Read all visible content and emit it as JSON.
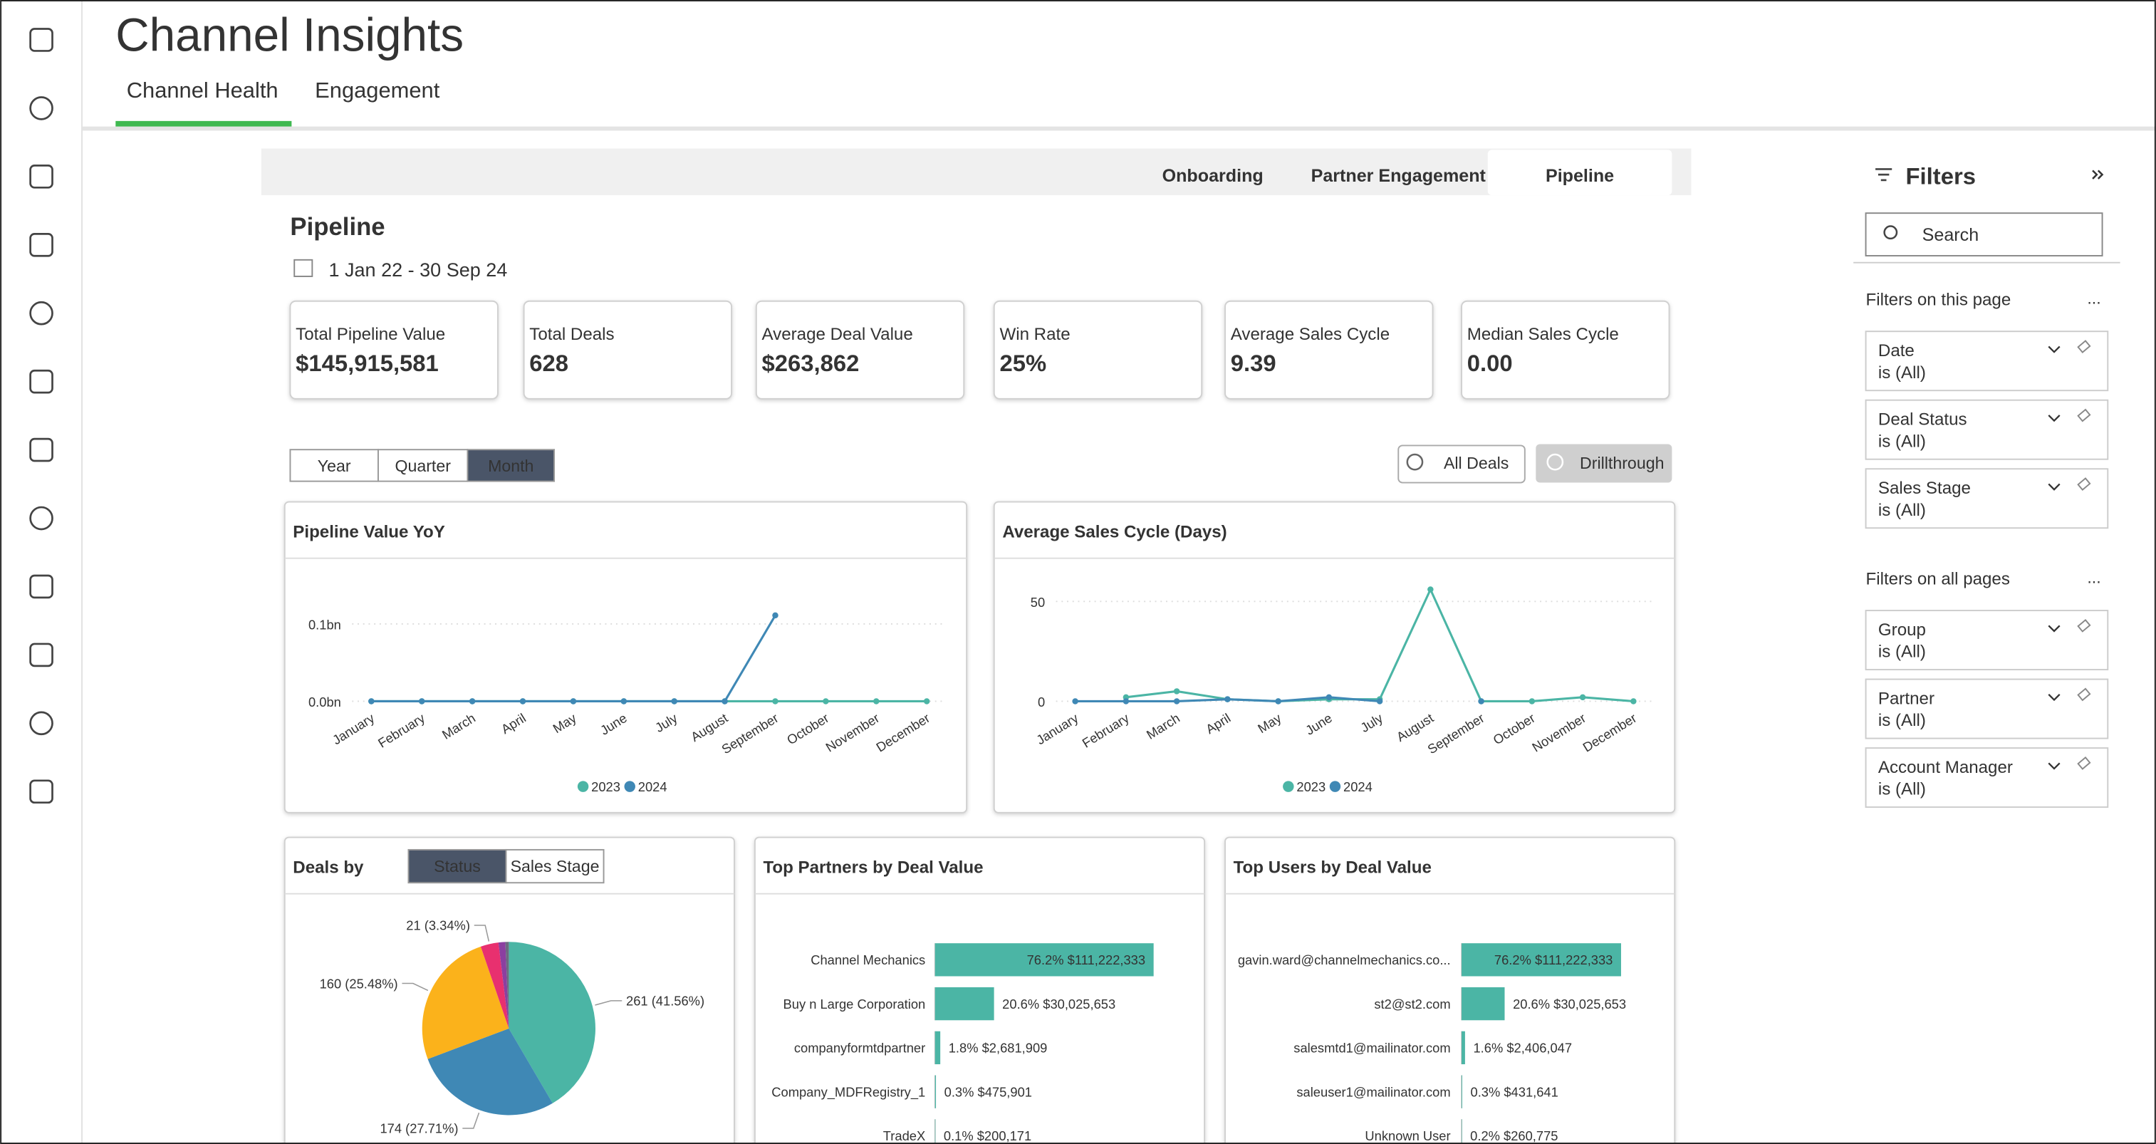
{
  "nav": {
    "title": "Channel Insights",
    "tabs": [
      "Channel Health",
      "Engagement"
    ]
  },
  "report_tabs": [
    "Onboarding",
    "Partner Engagement",
    "Pipeline"
  ],
  "page": {
    "title": "Pipeline",
    "date_range": "1 Jan 22 - 30 Sep 24"
  },
  "kpis": [
    {
      "label": "Total Pipeline Value",
      "value": "$145,915,581"
    },
    {
      "label": "Total Deals",
      "value": "628"
    },
    {
      "label": "Average Deal Value",
      "value": "$263,862"
    },
    {
      "label": "Win Rate",
      "value": "25%"
    },
    {
      "label": "Average Sales Cycle",
      "value": "9.39"
    },
    {
      "label": "Median Sales Cycle",
      "value": "0.00"
    }
  ],
  "period_toggle": [
    "Year",
    "Quarter",
    "Month"
  ],
  "actions": {
    "search": "All Deals",
    "drillthrough": "Drillthrough"
  },
  "charts": [
    {
      "type": "line",
      "title": "Pipeline Value YoY",
      "categories": [
        "January",
        "February",
        "March",
        "April",
        "May",
        "June",
        "July",
        "August",
        "September",
        "October",
        "November",
        "December"
      ],
      "series": [
        {
          "name": "2023",
          "color": "#4bb5a5",
          "values": [
            0,
            0,
            0,
            0,
            0,
            0,
            0,
            0,
            0,
            0,
            0,
            0
          ]
        },
        {
          "name": "2024",
          "color": "#3f88b5",
          "values": [
            0,
            0,
            0,
            0,
            0,
            0,
            0,
            0,
            0.111,
            null,
            null,
            null
          ]
        }
      ],
      "ylim": [
        0,
        0.16
      ],
      "yticks": [
        {
          "value": 0,
          "label": "0.0bn"
        },
        {
          "value": 0.1,
          "label": "0.1bn"
        }
      ],
      "grid": true
    },
    {
      "type": "line",
      "title": "Average Sales Cycle (Days)",
      "categories": [
        "January",
        "February",
        "March",
        "April",
        "May",
        "June",
        "July",
        "August",
        "September",
        "October",
        "November",
        "December"
      ],
      "series": [
        {
          "name": "2023",
          "color": "#4bb5a5",
          "values": [
            null,
            2,
            5,
            1,
            0,
            1,
            1,
            56,
            0,
            0,
            2,
            0
          ]
        },
        {
          "name": "2024",
          "color": "#3f88b5",
          "values": [
            0,
            0,
            0,
            1,
            0,
            2,
            0,
            null,
            0,
            null,
            null,
            null
          ]
        }
      ],
      "ylim": [
        0,
        62
      ],
      "yticks": [
        0,
        50
      ],
      "grid": true
    },
    {
      "type": "pie",
      "title": "Deals by",
      "toggle": [
        "Status",
        "Sales Stage"
      ],
      "values": [
        261,
        174,
        160,
        21,
        8,
        4
      ],
      "value_labels": [
        "261 (41.56%)",
        "174 (27.71%)",
        "160 (25.48%)",
        "21 (3.34%)",
        null,
        null
      ],
      "colors": [
        "#4bb5a5",
        "#3f88b5",
        "#fbb21b",
        "#e8306f",
        "#8b3fa0",
        "#6b6b80"
      ]
    },
    {
      "type": "hbar",
      "title": "Top Partners by Deal Value",
      "color": "#4bb5a5",
      "categories": [
        "Channel Mechanics",
        "Buy n Large Corporation",
        "companyformtdpartner",
        "Company_MDFRegistry_1",
        "TradeX"
      ],
      "values": [
        111222333,
        30025653,
        2681909,
        475901,
        200171
      ],
      "value_labels": [
        "76.2% $111,222,333",
        "20.6% $30,025,653",
        "1.8% $2,681,909",
        "0.3% $475,901",
        "0.1% $200,171"
      ]
    },
    {
      "type": "hbar",
      "title": "Top Users by Deal Value",
      "color": "#4bb5a5",
      "categories": [
        "gavin.ward@channelmechanics.co...",
        "st2@st2.com",
        "salesmtd1@mailinator.com",
        "saleuser1@mailinator.com",
        "Unknown User"
      ],
      "values": [
        111222333,
        30025653,
        2406047,
        431641,
        260775
      ],
      "value_labels": [
        "76.2% $111,222,333",
        "20.6% $30,025,653",
        "1.6% $2,406,047",
        "0.3% $431,641",
        "0.2% $260,775"
      ]
    }
  ],
  "filters": {
    "title": "Filters",
    "search": "Search",
    "more": "...",
    "page_section": "Filters on this page",
    "all_section": "Filters on all pages",
    "page_filters": [
      {
        "name": "Date",
        "state": "is (All)"
      },
      {
        "name": "Deal Status",
        "state": "is (All)"
      },
      {
        "name": "Sales Stage",
        "state": "is (All)"
      }
    ],
    "all_filters": [
      {
        "name": "Group",
        "state": "is (All)"
      },
      {
        "name": "Partner",
        "state": "is (All)"
      },
      {
        "name": "Account Manager",
        "state": "is (All)"
      }
    ]
  }
}
